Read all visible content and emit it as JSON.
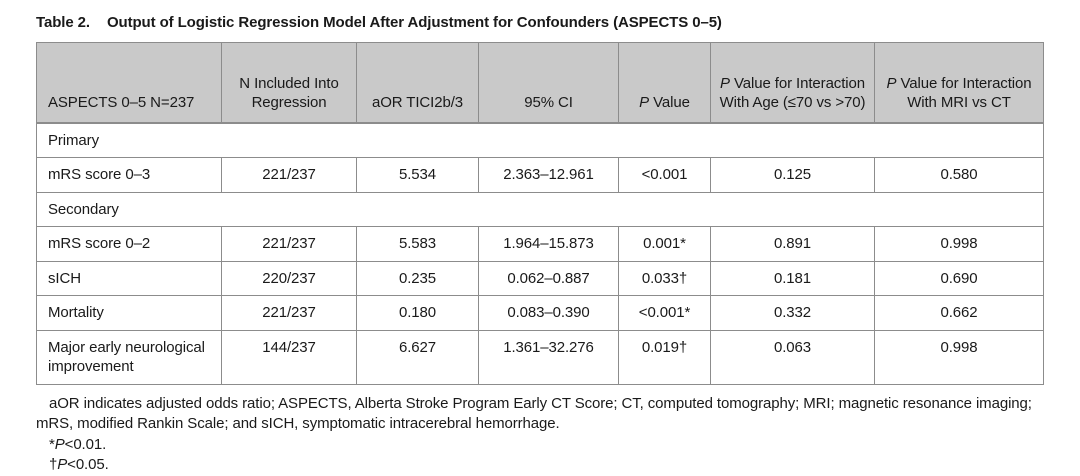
{
  "title": {
    "label": "Table 2.",
    "text": "Output of Logistic Regression Model After Adjustment for Confounders (ASPECTS 0–5)"
  },
  "colors": {
    "header_bg": "#c9c9c9",
    "border": "#8c8c8c",
    "text": "#1a1a1a"
  },
  "table": {
    "columns": [
      "ASPECTS 0–5 N=237",
      "N Included Into Regression",
      "aOR TICI2b/3",
      "95% CI",
      "P Value",
      "P Value for Interaction With Age (≤70 vs >70)",
      "P Value for Interaction With MRI vs CT"
    ],
    "sections": [
      {
        "label": "Primary",
        "rows": [
          {
            "outcome": "mRS score 0–3",
            "n_included": "221/237",
            "aor": "5.534",
            "ci": "2.363–12.961",
            "p_value": "<0.001",
            "p_interaction_age": "0.125",
            "p_interaction_mri_ct": "0.580"
          }
        ]
      },
      {
        "label": "Secondary",
        "rows": [
          {
            "outcome": "mRS score 0–2",
            "n_included": "221/237",
            "aor": "5.583",
            "ci": "1.964–15.873",
            "p_value": "0.001*",
            "p_interaction_age": "0.891",
            "p_interaction_mri_ct": "0.998"
          },
          {
            "outcome": "sICH",
            "n_included": "220/237",
            "aor": "0.235",
            "ci": "0.062–0.887",
            "p_value": "0.033†",
            "p_interaction_age": "0.181",
            "p_interaction_mri_ct": "0.690"
          },
          {
            "outcome": "Mortality",
            "n_included": "221/237",
            "aor": "0.180",
            "ci": "0.083–0.390",
            "p_value": "<0.001*",
            "p_interaction_age": "0.332",
            "p_interaction_mri_ct": "0.662"
          },
          {
            "outcome": "Major early neurological improvement",
            "n_included": "144/237",
            "aor": "6.627",
            "ci": "1.361–32.276",
            "p_value": "0.019†",
            "p_interaction_age": "0.063",
            "p_interaction_mri_ct": "0.998"
          }
        ]
      }
    ]
  },
  "footnotes": {
    "abbreviations": "aOR indicates adjusted odds ratio; ASPECTS, Alberta Stroke Program Early CT Score; CT, computed tomography; MRI; magnetic resonance imaging; mRS, modified Rankin Scale; and sICH, symptomatic intracerebral hemorrhage.",
    "significance": [
      "*P<0.01.",
      "†P<0.05."
    ]
  }
}
